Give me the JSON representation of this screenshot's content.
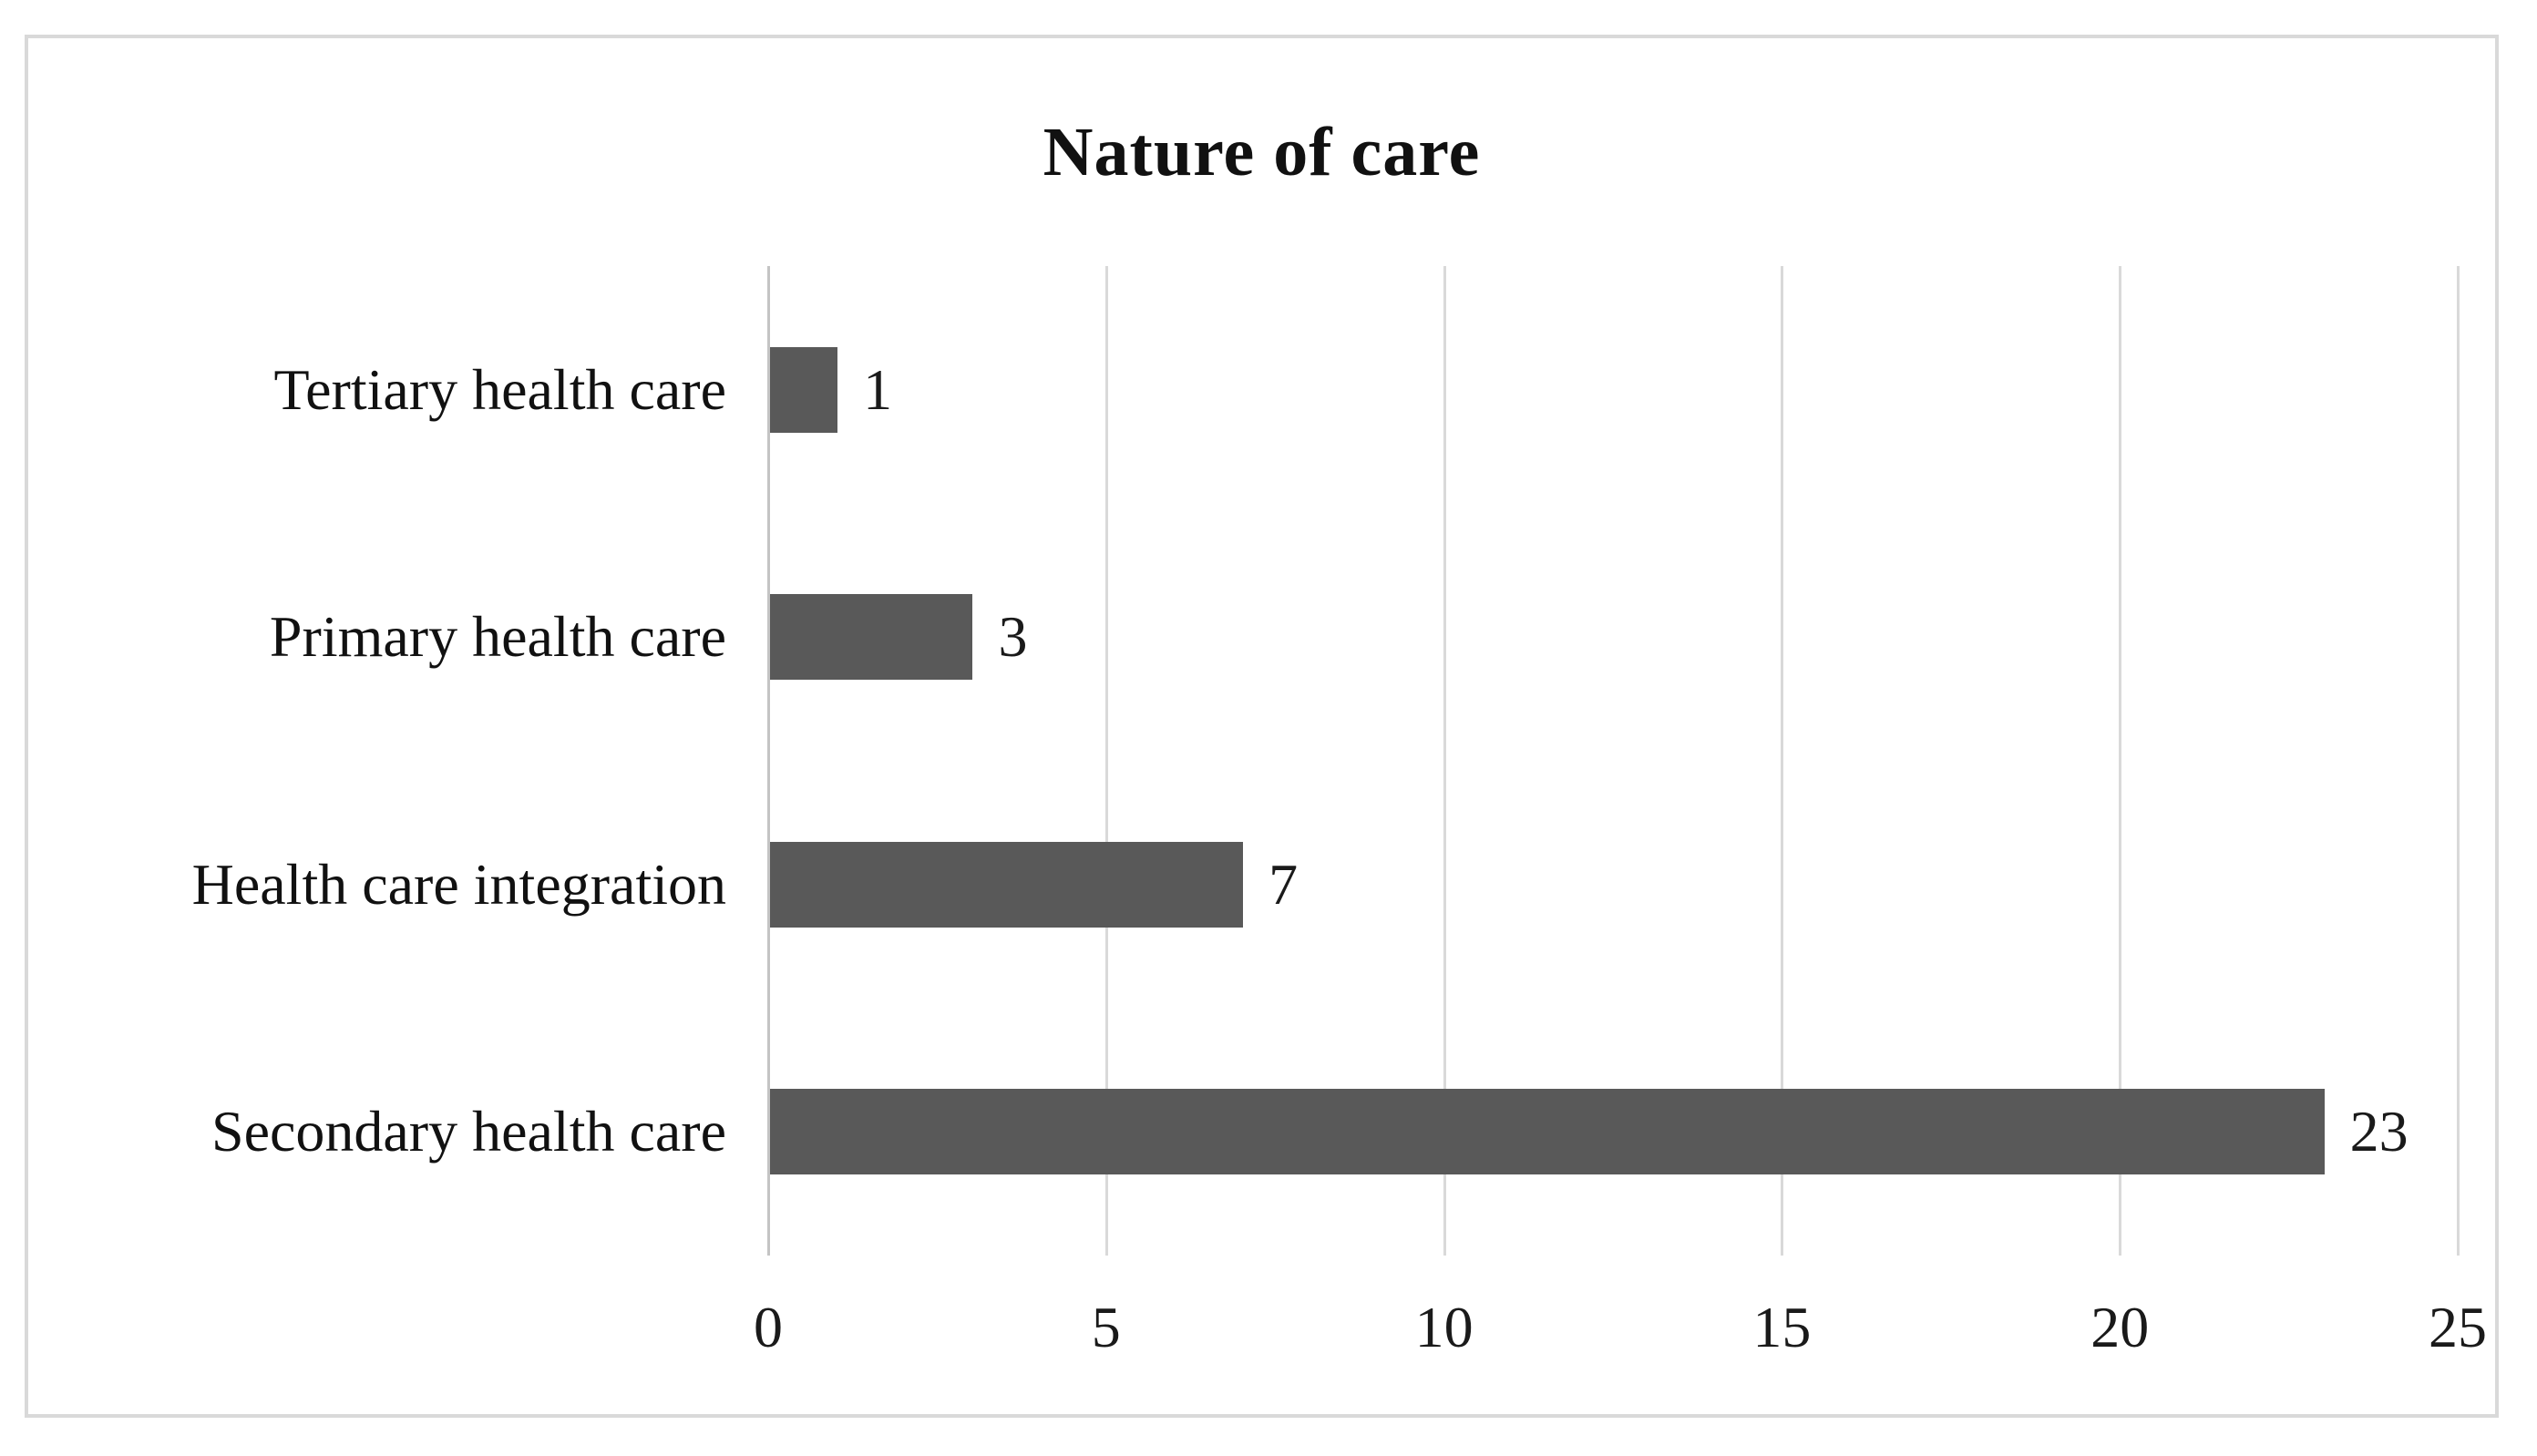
{
  "colors": {
    "bar": "#595959",
    "gridline": "#d9d9d9",
    "axis_line": "#c4c4c4",
    "frame_border": "#d9d9d9",
    "text": "#1a1a1a",
    "background": "#ffffff"
  },
  "chart_data": {
    "type": "bar",
    "orientation": "horizontal",
    "title": "Nature of care",
    "categories": [
      "Tertiary health care",
      "Primary health care",
      "Health care integration",
      "Secondary health care"
    ],
    "values": [
      1,
      3,
      7,
      23
    ],
    "data_labels": [
      "1",
      "3",
      "7",
      "23"
    ],
    "xlabel": "",
    "ylabel": "",
    "xlim": [
      0,
      25
    ],
    "xticks": [
      0,
      5,
      10,
      15,
      20,
      25
    ],
    "xtick_labels": [
      "0",
      "5",
      "10",
      "15",
      "20",
      "25"
    ],
    "grid": "vertical",
    "legend": false
  }
}
